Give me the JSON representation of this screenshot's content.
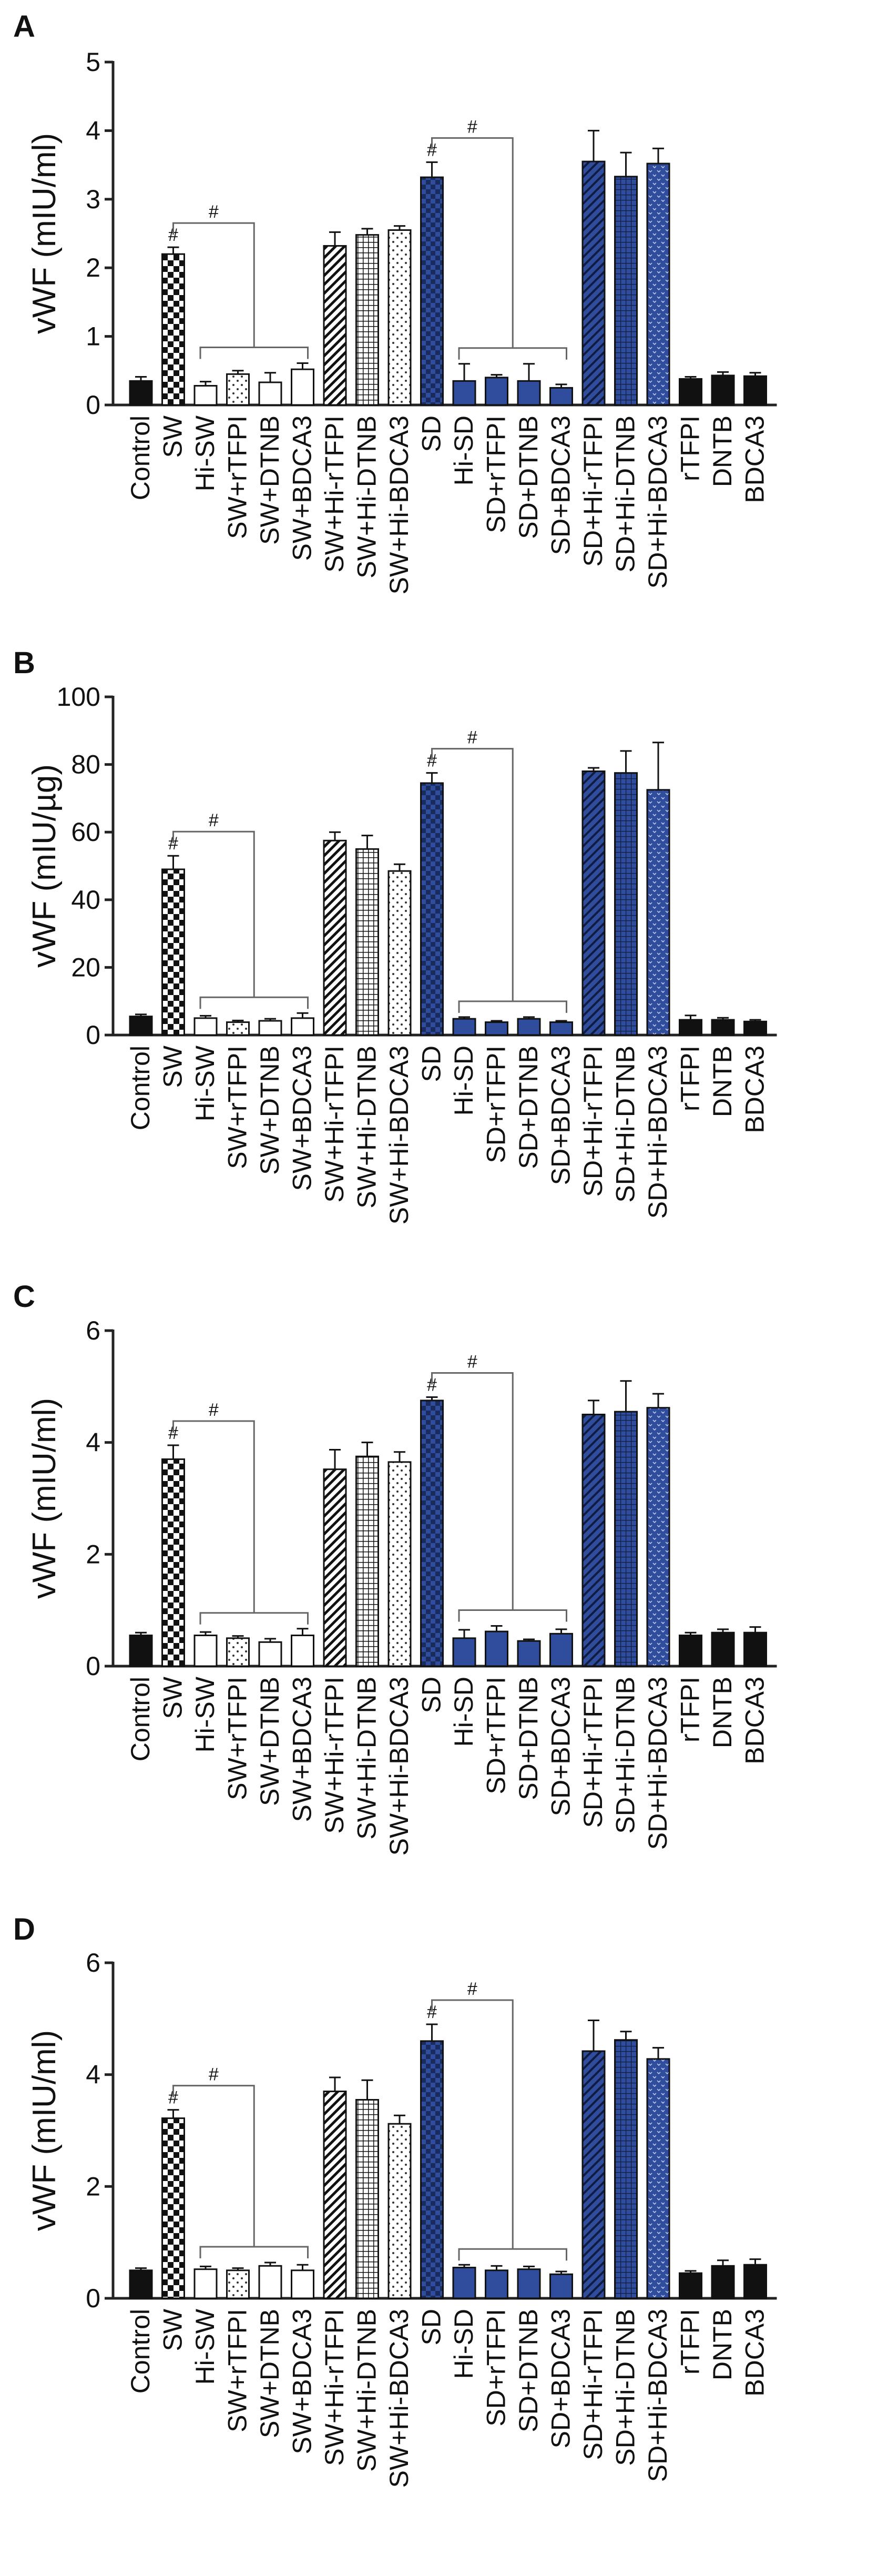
{
  "categories": [
    "Control",
    "SW",
    "Hi-SW",
    "SW+rTFPI",
    "SW+DTNB",
    "SW+BDCA3",
    "SW+Hi-rTFPI",
    "SW+Hi-DTNB",
    "SW+Hi-BDCA3",
    "SD",
    "Hi-SD",
    "SD+rTFPI",
    "SD+DTNB",
    "SD+BDCA3",
    "SD+Hi-rTFPI",
    "SD+Hi-DTNB",
    "SD+Hi-BDCA3",
    "rTFPI",
    "DNTB",
    "BDCA3"
  ],
  "bar_styles": {
    "fills": [
      "black",
      "checker",
      "white",
      "dots",
      "white",
      "white",
      "diag",
      "grid",
      "dots",
      "checker",
      "black",
      "black",
      "black",
      "black",
      "diag",
      "grid",
      "dots",
      "black",
      "black",
      "black"
    ],
    "blue_group": [
      false,
      false,
      false,
      false,
      false,
      false,
      false,
      false,
      false,
      true,
      true,
      true,
      true,
      true,
      true,
      true,
      true,
      false,
      false,
      false
    ],
    "colors": {
      "blue": "#2f4d9c",
      "black": "#111111",
      "axis": "#222222",
      "bracket": "#666666"
    }
  },
  "significance_marker": "#",
  "chart_data": [
    {
      "panel": "A",
      "type": "bar",
      "ylabel": "vWF (mIU/ml)",
      "ylim": [
        0,
        5
      ],
      "yticks": [
        0,
        1,
        2,
        3,
        4,
        5
      ],
      "values": [
        0.35,
        2.2,
        0.28,
        0.45,
        0.33,
        0.52,
        2.32,
        2.48,
        2.55,
        3.32,
        0.35,
        0.4,
        0.35,
        0.25,
        3.55,
        3.33,
        3.52,
        0.38,
        0.43,
        0.42
      ],
      "errors": [
        0.06,
        0.1,
        0.06,
        0.05,
        0.14,
        0.09,
        0.2,
        0.09,
        0.06,
        0.22,
        0.25,
        0.04,
        0.25,
        0.05,
        0.45,
        0.35,
        0.22,
        0.03,
        0.05,
        0.05
      ]
    },
    {
      "panel": "B",
      "type": "bar",
      "ylabel": "vWF (mIU/µg)",
      "ylim": [
        0,
        100
      ],
      "yticks": [
        0,
        20,
        40,
        60,
        80,
        100
      ],
      "values": [
        5.5,
        49,
        5,
        3.8,
        4.2,
        5,
        57.5,
        55,
        48.5,
        74.5,
        4.8,
        3.8,
        4.8,
        3.8,
        78,
        77.5,
        72.5,
        4.5,
        4.5,
        4
      ],
      "errors": [
        0.6,
        4,
        0.7,
        0.5,
        0.6,
        1.5,
        2.5,
        4,
        2,
        3,
        0.5,
        0.4,
        0.5,
        0.4,
        1,
        6.5,
        14,
        1.3,
        0.6,
        0.5
      ]
    },
    {
      "panel": "C",
      "type": "bar",
      "ylabel": "vWF (mIU/ml)",
      "ylim": [
        0,
        6
      ],
      "yticks": [
        0,
        2,
        4,
        6
      ],
      "values": [
        0.55,
        3.7,
        0.55,
        0.5,
        0.43,
        0.55,
        3.52,
        3.75,
        3.65,
        4.75,
        0.5,
        0.62,
        0.45,
        0.58,
        4.5,
        4.55,
        4.62,
        0.55,
        0.6,
        0.6
      ],
      "errors": [
        0.05,
        0.25,
        0.06,
        0.04,
        0.06,
        0.12,
        0.35,
        0.25,
        0.18,
        0.06,
        0.15,
        0.1,
        0.03,
        0.08,
        0.25,
        0.55,
        0.25,
        0.05,
        0.06,
        0.1
      ]
    },
    {
      "panel": "D",
      "type": "bar",
      "ylabel": "vWF (mIU/ml)",
      "ylim": [
        0,
        6
      ],
      "yticks": [
        0,
        2,
        4,
        6
      ],
      "values": [
        0.5,
        3.22,
        0.52,
        0.5,
        0.58,
        0.5,
        3.7,
        3.55,
        3.12,
        4.6,
        0.55,
        0.5,
        0.52,
        0.43,
        4.42,
        4.62,
        4.28,
        0.45,
        0.58,
        0.6
      ],
      "errors": [
        0.04,
        0.15,
        0.05,
        0.04,
        0.06,
        0.1,
        0.25,
        0.35,
        0.15,
        0.3,
        0.05,
        0.08,
        0.05,
        0.05,
        0.55,
        0.15,
        0.2,
        0.04,
        0.1,
        0.1
      ]
    }
  ]
}
